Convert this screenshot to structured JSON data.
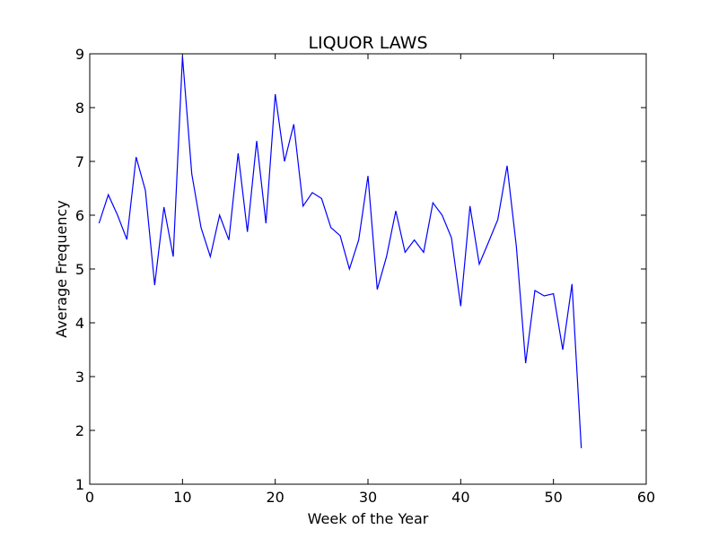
{
  "chart_data": {
    "type": "line",
    "title": "LIQUOR LAWS",
    "xlabel": "Week of the Year",
    "ylabel": "Average Frequency",
    "xlim": [
      0,
      60
    ],
    "ylim": [
      1,
      9
    ],
    "xticks": [
      0,
      10,
      20,
      30,
      40,
      50,
      60
    ],
    "yticks": [
      1,
      2,
      3,
      4,
      5,
      6,
      7,
      8,
      9
    ],
    "grid": false,
    "colors": {
      "line": "#0000ff",
      "axes": "#000000",
      "background": "#ffffff"
    },
    "series": [
      {
        "x": [
          1,
          2,
          3,
          4,
          5,
          6,
          7,
          8,
          9,
          10,
          11,
          12,
          13,
          14,
          15,
          16,
          17,
          18,
          19,
          20,
          21,
          22,
          23,
          24,
          25,
          26,
          27,
          28,
          29,
          30,
          31,
          32,
          33,
          34,
          35,
          36,
          37,
          38,
          39,
          40,
          41,
          42,
          43,
          44,
          45,
          46,
          47,
          48,
          49,
          50,
          51,
          52,
          53
        ],
        "values": [
          5.85,
          6.38,
          6.0,
          5.55,
          7.08,
          6.46,
          4.7,
          6.15,
          5.23,
          8.95,
          6.77,
          5.77,
          5.23,
          6.0,
          5.54,
          7.15,
          5.69,
          7.38,
          5.85,
          8.25,
          7.0,
          7.69,
          6.17,
          6.42,
          6.31,
          5.77,
          5.62,
          5.0,
          5.54,
          6.73,
          4.62,
          5.23,
          6.08,
          5.31,
          5.54,
          5.31,
          6.23,
          6.0,
          5.58,
          4.31,
          6.17,
          5.09,
          5.5,
          5.92,
          6.92,
          5.42,
          3.25,
          4.6,
          4.5,
          4.54,
          3.5,
          4.72,
          1.67
        ]
      }
    ]
  }
}
